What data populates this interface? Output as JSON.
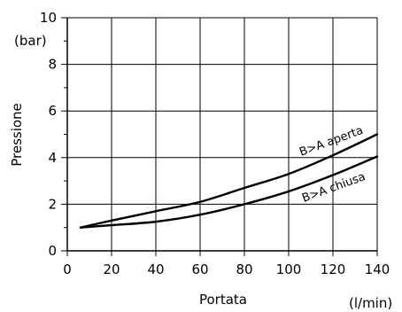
{
  "chart_data": {
    "type": "line",
    "xlabel": "Portata",
    "xunit": "(l/min)",
    "ylabel": "Pressione",
    "yunit": "(bar)",
    "xlim": [
      0,
      140
    ],
    "ylim": [
      0,
      10
    ],
    "xticks": [
      0,
      20,
      40,
      60,
      80,
      100,
      120,
      140
    ],
    "yticks": [
      0,
      2,
      4,
      6,
      8,
      10
    ],
    "grid": true,
    "series": [
      {
        "name": "B>A aperta",
        "x": [
          6,
          20,
          40,
          60,
          80,
          100,
          120,
          140
        ],
        "y": [
          1.0,
          1.3,
          1.7,
          2.1,
          2.7,
          3.3,
          4.1,
          5.0
        ]
      },
      {
        "name": "B>A chiusa",
        "x": [
          6,
          20,
          40,
          60,
          80,
          100,
          120,
          140
        ],
        "y": [
          1.0,
          1.1,
          1.25,
          1.55,
          2.0,
          2.55,
          3.25,
          4.05
        ]
      }
    ]
  }
}
